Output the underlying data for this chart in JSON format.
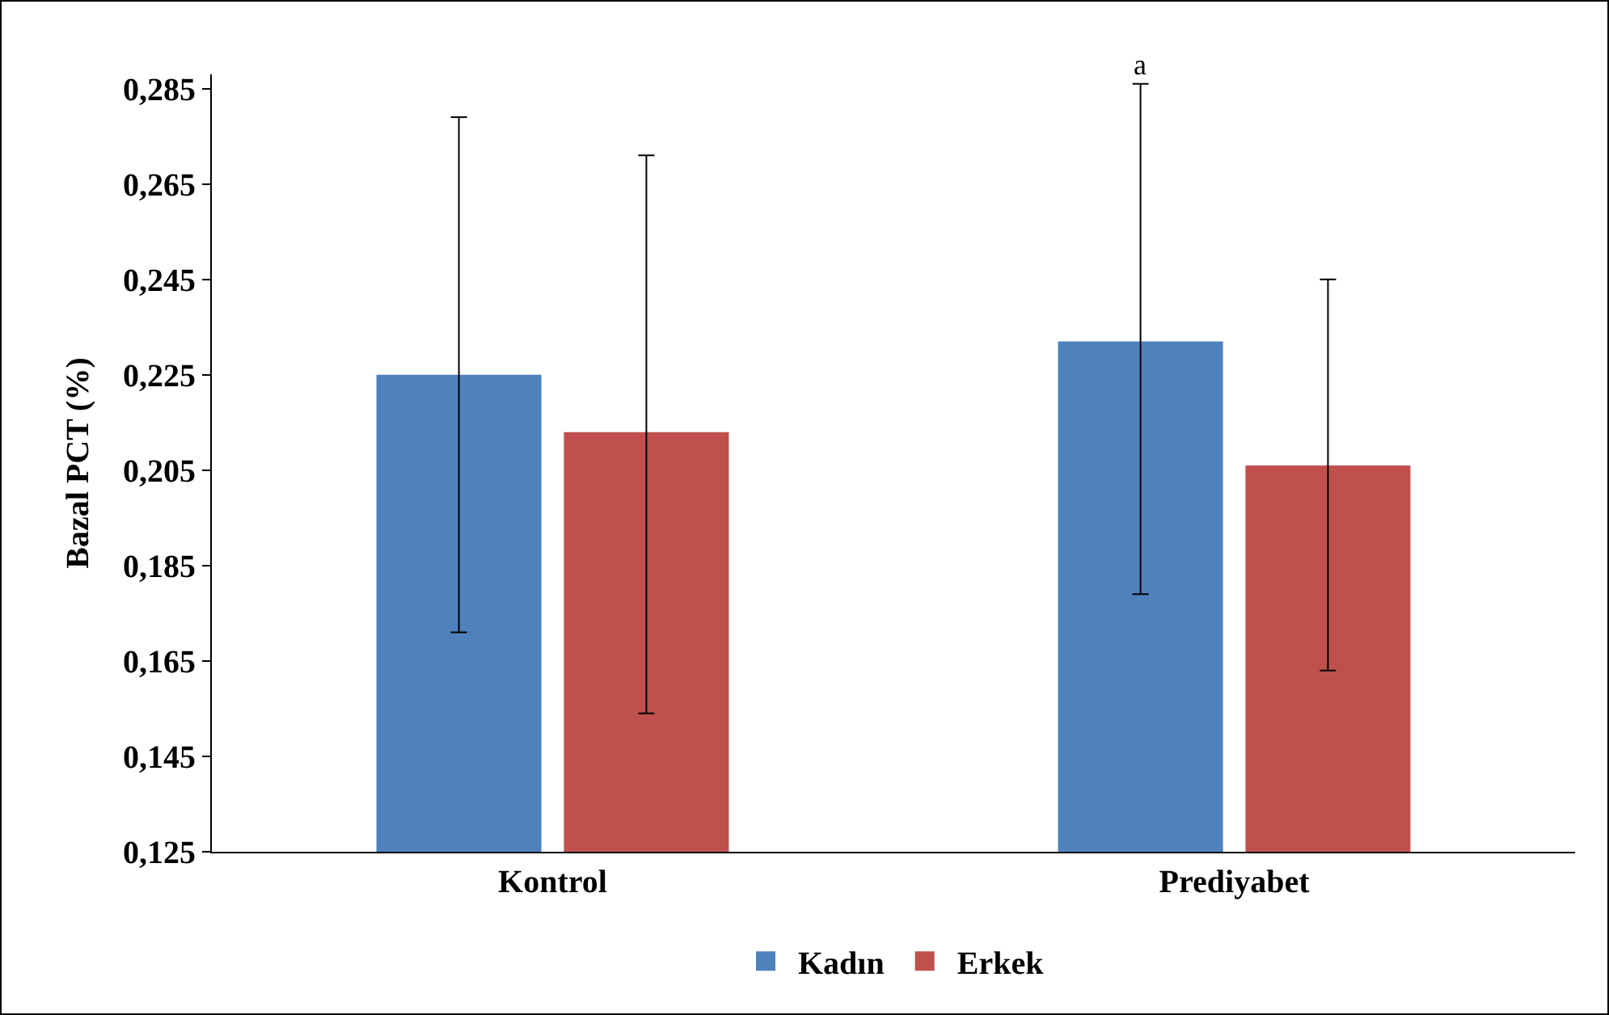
{
  "chart_data": {
    "type": "bar",
    "ylabel": "Bazal PCT (%)",
    "categories": [
      "Kontrol",
      "Prediyabet"
    ],
    "series": [
      {
        "name": "Kadın",
        "color": "#4f81bd",
        "values": [
          0.225,
          0.232
        ],
        "errors": [
          [
            0.171,
            0.279
          ],
          [
            0.179,
            0.286
          ]
        ]
      },
      {
        "name": "Erkek",
        "color": "#c0504d",
        "values": [
          0.213,
          0.206
        ],
        "errors": [
          [
            0.154,
            0.271
          ],
          [
            0.163,
            0.245
          ]
        ]
      }
    ],
    "ylim": [
      0.125,
      0.288
    ],
    "yticks": [
      {
        "value": 0.125,
        "label": "0,125"
      },
      {
        "value": 0.145,
        "label": "0,145"
      },
      {
        "value": 0.165,
        "label": "0,165"
      },
      {
        "value": 0.185,
        "label": "0,185"
      },
      {
        "value": 0.205,
        "label": "0,205"
      },
      {
        "value": 0.225,
        "label": "0,225"
      },
      {
        "value": 0.245,
        "label": "0,245"
      },
      {
        "value": 0.265,
        "label": "0,265"
      },
      {
        "value": 0.285,
        "label": "0,285"
      }
    ],
    "annotations": [
      "a"
    ],
    "grid": false,
    "legend": "bottom"
  }
}
